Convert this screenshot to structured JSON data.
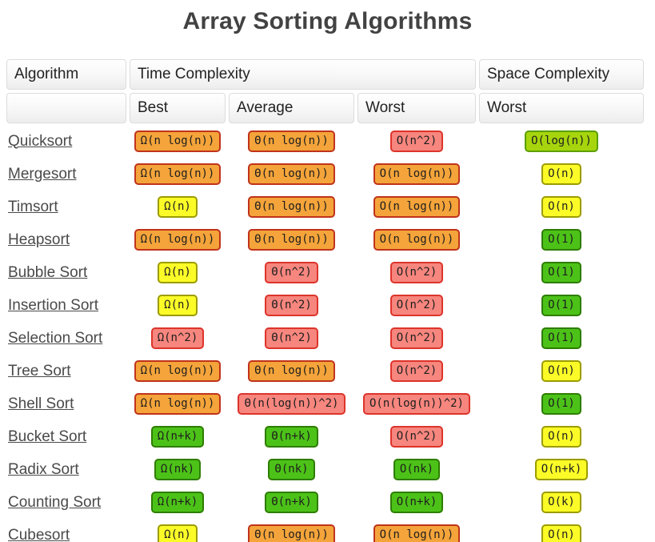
{
  "title": "Array Sorting Algorithms",
  "colors": {
    "orange": {
      "bg": "#f4a43a",
      "border": "#c0331b"
    },
    "red": {
      "bg": "#f6867e",
      "border": "#dd342b"
    },
    "yellow": {
      "bg": "#fbfb28",
      "border": "#9c9c00"
    },
    "green": {
      "bg": "#4cc218",
      "border": "#2e7d00"
    },
    "yellowgreen": {
      "bg": "#a7d50d",
      "border": "#5b9f02"
    }
  },
  "table": {
    "headers": {
      "algorithm": "Algorithm",
      "time": "Time Complexity",
      "space": "Space Complexity",
      "best": "Best",
      "average": "Average",
      "worst": "Worst",
      "space_worst": "Worst"
    },
    "rows": [
      {
        "name": "Quicksort",
        "best": {
          "text": "Ω(n log(n))",
          "color": "orange"
        },
        "average": {
          "text": "Θ(n log(n))",
          "color": "orange"
        },
        "worst": {
          "text": "O(n^2)",
          "color": "red"
        },
        "space": {
          "text": "O(log(n))",
          "color": "yellowgreen"
        }
      },
      {
        "name": "Mergesort",
        "best": {
          "text": "Ω(n log(n))",
          "color": "orange"
        },
        "average": {
          "text": "Θ(n log(n))",
          "color": "orange"
        },
        "worst": {
          "text": "O(n log(n))",
          "color": "orange"
        },
        "space": {
          "text": "O(n)",
          "color": "yellow"
        }
      },
      {
        "name": "Timsort",
        "best": {
          "text": "Ω(n)",
          "color": "yellow"
        },
        "average": {
          "text": "Θ(n log(n))",
          "color": "orange"
        },
        "worst": {
          "text": "O(n log(n))",
          "color": "orange"
        },
        "space": {
          "text": "O(n)",
          "color": "yellow"
        }
      },
      {
        "name": "Heapsort",
        "best": {
          "text": "Ω(n log(n))",
          "color": "orange"
        },
        "average": {
          "text": "Θ(n log(n))",
          "color": "orange"
        },
        "worst": {
          "text": "O(n log(n))",
          "color": "orange"
        },
        "space": {
          "text": "O(1)",
          "color": "green"
        }
      },
      {
        "name": "Bubble Sort",
        "best": {
          "text": "Ω(n)",
          "color": "yellow"
        },
        "average": {
          "text": "Θ(n^2)",
          "color": "red"
        },
        "worst": {
          "text": "O(n^2)",
          "color": "red"
        },
        "space": {
          "text": "O(1)",
          "color": "green"
        }
      },
      {
        "name": "Insertion Sort",
        "best": {
          "text": "Ω(n)",
          "color": "yellow"
        },
        "average": {
          "text": "Θ(n^2)",
          "color": "red"
        },
        "worst": {
          "text": "O(n^2)",
          "color": "red"
        },
        "space": {
          "text": "O(1)",
          "color": "green"
        }
      },
      {
        "name": "Selection Sort",
        "best": {
          "text": "Ω(n^2)",
          "color": "red"
        },
        "average": {
          "text": "Θ(n^2)",
          "color": "red"
        },
        "worst": {
          "text": "O(n^2)",
          "color": "red"
        },
        "space": {
          "text": "O(1)",
          "color": "green"
        }
      },
      {
        "name": "Tree Sort",
        "best": {
          "text": "Ω(n log(n))",
          "color": "orange"
        },
        "average": {
          "text": "Θ(n log(n))",
          "color": "orange"
        },
        "worst": {
          "text": "O(n^2)",
          "color": "red"
        },
        "space": {
          "text": "O(n)",
          "color": "yellow"
        }
      },
      {
        "name": "Shell Sort",
        "best": {
          "text": "Ω(n log(n))",
          "color": "orange"
        },
        "average": {
          "text": "Θ(n(log(n))^2)",
          "color": "red"
        },
        "worst": {
          "text": "O(n(log(n))^2)",
          "color": "red"
        },
        "space": {
          "text": "O(1)",
          "color": "green"
        }
      },
      {
        "name": "Bucket Sort",
        "best": {
          "text": "Ω(n+k)",
          "color": "green"
        },
        "average": {
          "text": "Θ(n+k)",
          "color": "green"
        },
        "worst": {
          "text": "O(n^2)",
          "color": "red"
        },
        "space": {
          "text": "O(n)",
          "color": "yellow"
        }
      },
      {
        "name": "Radix Sort",
        "best": {
          "text": "Ω(nk)",
          "color": "green"
        },
        "average": {
          "text": "Θ(nk)",
          "color": "green"
        },
        "worst": {
          "text": "O(nk)",
          "color": "green"
        },
        "space": {
          "text": "O(n+k)",
          "color": "yellow"
        }
      },
      {
        "name": "Counting Sort",
        "best": {
          "text": "Ω(n+k)",
          "color": "green"
        },
        "average": {
          "text": "Θ(n+k)",
          "color": "green"
        },
        "worst": {
          "text": "O(n+k)",
          "color": "green"
        },
        "space": {
          "text": "O(k)",
          "color": "yellow"
        }
      },
      {
        "name": "Cubesort",
        "best": {
          "text": "Ω(n)",
          "color": "yellow"
        },
        "average": {
          "text": "Θ(n log(n))",
          "color": "orange"
        },
        "worst": {
          "text": "O(n log(n))",
          "color": "orange"
        },
        "space": {
          "text": "O(n)",
          "color": "yellow"
        }
      }
    ]
  }
}
